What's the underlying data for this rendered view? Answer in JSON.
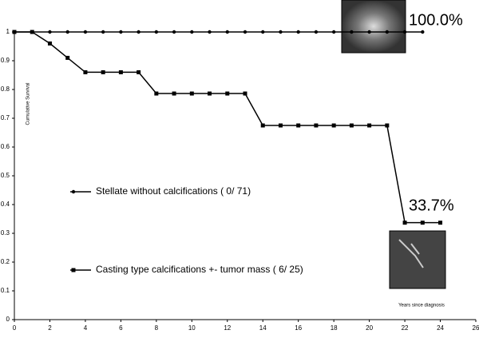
{
  "chart_data": {
    "type": "line",
    "y_label": "Cumulative Survival",
    "x_label": "Years since diagnosis",
    "series": [
      {
        "name": "Stellate without calcifications ( 0/ 71)",
        "color": "#000000",
        "marker": "circle",
        "x": [
          0,
          1,
          2,
          3,
          4,
          5,
          6,
          7,
          8,
          9,
          10,
          11,
          12,
          13,
          14,
          15,
          16,
          17,
          18,
          19,
          20,
          21,
          22,
          23
        ],
        "values": [
          1,
          1,
          1,
          1,
          1,
          1,
          1,
          1,
          1,
          1,
          1,
          1,
          1,
          1,
          1,
          1,
          1,
          1,
          1,
          1,
          1,
          1,
          1,
          1
        ]
      },
      {
        "name": "Casting type calcifications +- tumor mass ( 6/ 25)",
        "color": "#000000",
        "marker": "square",
        "x": [
          0,
          1,
          2,
          3,
          4,
          5,
          6,
          7,
          8,
          9,
          10,
          11,
          12,
          13,
          14,
          15,
          16,
          17,
          18,
          19,
          20,
          21,
          22,
          23,
          24
        ],
        "values": [
          1,
          1,
          0.96,
          0.91,
          0.86,
          0.86,
          0.86,
          0.86,
          0.786,
          0.786,
          0.786,
          0.786,
          0.786,
          0.786,
          0.675,
          0.675,
          0.675,
          0.675,
          0.675,
          0.675,
          0.675,
          0.675,
          0.337,
          0.337,
          0.337
        ]
      }
    ],
    "annotations": [
      "100.0%",
      "33.7%"
    ],
    "xlim": [
      0,
      26
    ],
    "xticks": [
      0,
      2,
      4,
      6,
      8,
      10,
      12,
      14,
      16,
      18,
      20,
      22,
      24,
      26
    ],
    "ylim": [
      0,
      1
    ],
    "yticks": [
      0,
      0.1,
      0.2,
      0.3,
      0.4,
      0.5,
      0.6,
      0.7,
      0.8,
      0.9,
      1
    ],
    "grid": false
  }
}
